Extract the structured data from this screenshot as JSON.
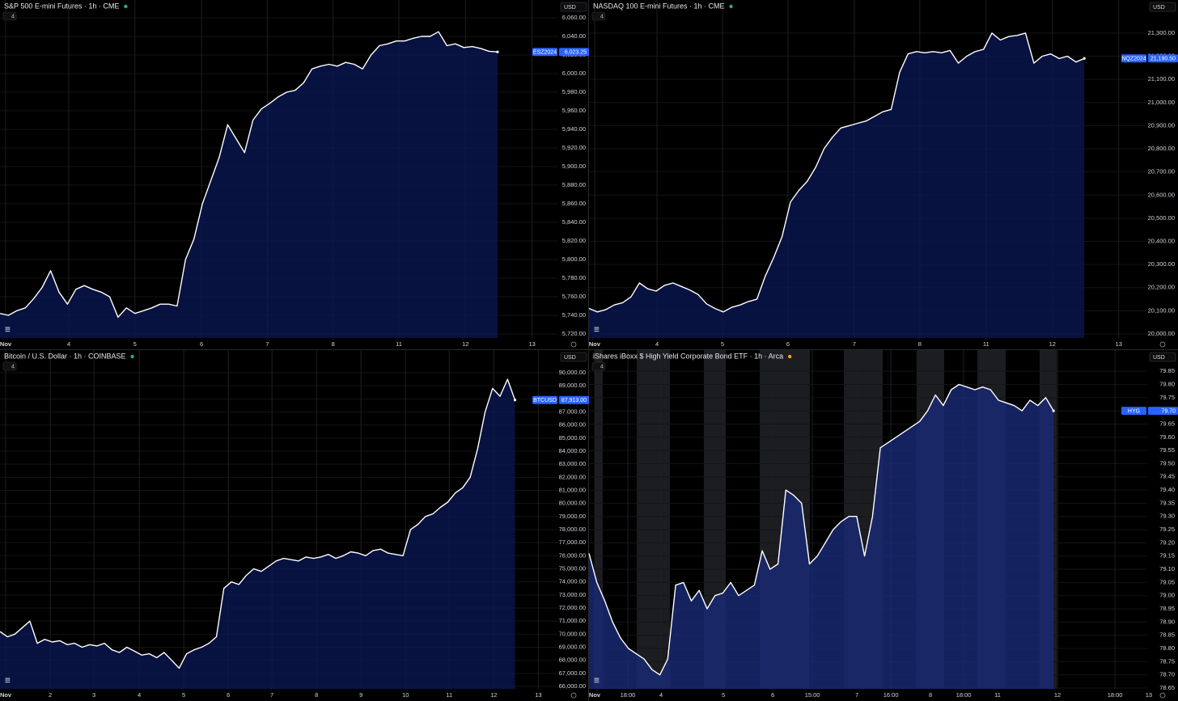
{
  "chart_data": [
    {
      "type": "area",
      "title": "S&P 500 E-mini Futures · 1h · CME",
      "indicator_count": "4",
      "currency": "USD",
      "symbol": "ESZ2024",
      "last_label": "6,023.25",
      "color": "#ffffff",
      "fill_color": "#0a1750",
      "grid": true,
      "values": [
        5742,
        5740,
        5745,
        5748,
        5758,
        5770,
        5788,
        5765,
        5752,
        5768,
        5772,
        5768,
        5765,
        5760,
        5738,
        5748,
        5742,
        5745,
        5748,
        5752,
        5752,
        5750,
        5800,
        5822,
        5860,
        5885,
        5910,
        5945,
        5930,
        5915,
        5950,
        5962,
        5968,
        5975,
        5980,
        5982,
        5990,
        6005,
        6008,
        6010,
        6008,
        6012,
        6010,
        6005,
        6020,
        6030,
        6032,
        6035,
        6035,
        6038,
        6040,
        6040,
        6045,
        6030,
        6032,
        6028,
        6029,
        6027,
        6024,
        6023.25
      ],
      "xlim": [
        0,
        66.2
      ],
      "xticks": [
        {
          "value": 0.67,
          "label": "Nov"
        },
        {
          "value": 8.16,
          "label": "4"
        },
        {
          "value": 16.0,
          "label": "5"
        },
        {
          "value": 23.9,
          "label": "6"
        },
        {
          "value": 31.7,
          "label": "7"
        },
        {
          "value": 39.5,
          "label": "8"
        },
        {
          "value": 47.3,
          "label": "11"
        },
        {
          "value": 55.2,
          "label": "12"
        },
        {
          "value": 63.1,
          "label": "13"
        }
      ],
      "ylim": [
        5715.7,
        6079.1
      ],
      "yticks": [
        {
          "value": 5720,
          "label": "5,720.00"
        },
        {
          "value": 5740,
          "label": "5,740.00"
        },
        {
          "value": 5760,
          "label": "5,760.00"
        },
        {
          "value": 5780,
          "label": "5,780.00"
        },
        {
          "value": 5800,
          "label": "5,800.00"
        },
        {
          "value": 5820,
          "label": "5,820.00"
        },
        {
          "value": 5840,
          "label": "5,840.00"
        },
        {
          "value": 5860,
          "label": "5,860.00"
        },
        {
          "value": 5880,
          "label": "5,880.00"
        },
        {
          "value": 5900,
          "label": "5,900.00"
        },
        {
          "value": 5920,
          "label": "5,920.00"
        },
        {
          "value": 5940,
          "label": "5,940.00"
        },
        {
          "value": 5960,
          "label": "5,960.00"
        },
        {
          "value": 5980,
          "label": "5,980.00"
        },
        {
          "value": 6000,
          "label": "6,000.00"
        },
        {
          "value": 6020,
          "label": "6,020.00"
        },
        {
          "value": 6040,
          "label": "6,040.00"
        },
        {
          "value": 6060,
          "label": "6,060.00"
        }
      ]
    },
    {
      "type": "area",
      "title": "NASDAQ 100 E-mini Futures · 1h · CME",
      "indicator_count": "4",
      "currency": "USD",
      "symbol": "NQZ2024",
      "last_label": "21,190.50",
      "color": "#ffffff",
      "fill_color": "#0a1750",
      "grid": true,
      "values": [
        20110,
        20095,
        20105,
        20125,
        20135,
        20160,
        20220,
        20195,
        20185,
        20210,
        20220,
        20205,
        20190,
        20170,
        20130,
        20110,
        20095,
        20115,
        20125,
        20140,
        20150,
        20250,
        20330,
        20420,
        20570,
        20620,
        20660,
        20720,
        20800,
        20850,
        20890,
        20900,
        20910,
        20920,
        20940,
        20960,
        20970,
        21130,
        21210,
        21220,
        21215,
        21220,
        21215,
        21225,
        21170,
        21200,
        21220,
        21230,
        21300,
        21270,
        21285,
        21290,
        21300,
        21170,
        21200,
        21210,
        21190,
        21200,
        21175,
        21190.5
      ],
      "xlim": [
        0,
        66.5
      ],
      "xticks": [
        {
          "value": 0.67,
          "label": "Nov"
        },
        {
          "value": 8.1,
          "label": "4"
        },
        {
          "value": 15.9,
          "label": "5"
        },
        {
          "value": 23.7,
          "label": "6"
        },
        {
          "value": 31.6,
          "label": "7"
        },
        {
          "value": 39.4,
          "label": "8"
        },
        {
          "value": 47.3,
          "label": "11"
        },
        {
          "value": 55.2,
          "label": "12"
        },
        {
          "value": 63.1,
          "label": "13"
        }
      ],
      "ylim": [
        19982.5,
        21443
      ],
      "yticks": [
        {
          "value": 20000,
          "label": "20,000.00"
        },
        {
          "value": 20100,
          "label": "20,100.00"
        },
        {
          "value": 20200,
          "label": "20,200.00"
        },
        {
          "value": 20300,
          "label": "20,300.00"
        },
        {
          "value": 20400,
          "label": "20,400.00"
        },
        {
          "value": 20500,
          "label": "20,500.00"
        },
        {
          "value": 20600,
          "label": "20,600.00"
        },
        {
          "value": 20700,
          "label": "20,700.00"
        },
        {
          "value": 20800,
          "label": "20,800.00"
        },
        {
          "value": 20900,
          "label": "20,900.00"
        },
        {
          "value": 21000,
          "label": "21,000.00"
        },
        {
          "value": 21100,
          "label": "21,100.00"
        },
        {
          "value": 21200,
          "label": "21,200.00"
        },
        {
          "value": 21300,
          "label": "21,300.00"
        }
      ]
    },
    {
      "type": "area",
      "title": "Bitcoin / U.S. Dollar · 1h · COINBASE",
      "indicator_count": "4",
      "currency": "USD",
      "symbol": "BTCUSD",
      "last_label": "87,913.00",
      "color": "#ffffff",
      "fill_color": "#0a1750",
      "grid": true,
      "values": [
        70200,
        69800,
        70000,
        70500,
        71000,
        69300,
        69600,
        69400,
        69500,
        69200,
        69300,
        69000,
        69200,
        69100,
        69300,
        68800,
        68600,
        69000,
        68700,
        68400,
        68500,
        68200,
        68600,
        68000,
        67400,
        68500,
        68800,
        69000,
        69300,
        69800,
        73500,
        74000,
        73800,
        74500,
        75000,
        74800,
        75200,
        75600,
        75800,
        75700,
        75600,
        75900,
        75800,
        75900,
        76100,
        75800,
        76000,
        76300,
        76200,
        76000,
        76400,
        76500,
        76200,
        76100,
        76000,
        78000,
        78400,
        79000,
        79200,
        79700,
        80100,
        80800,
        81200,
        82000,
        84200,
        87000,
        88800,
        88200,
        89500,
        87913
      ],
      "xlim": [
        0,
        74.8
      ],
      "xticks": [
        {
          "value": 0.76,
          "label": "Nov"
        },
        {
          "value": 6.73,
          "label": "2"
        },
        {
          "value": 12.58,
          "label": "3"
        },
        {
          "value": 18.66,
          "label": "4"
        },
        {
          "value": 24.62,
          "label": "5"
        },
        {
          "value": 30.59,
          "label": "6"
        },
        {
          "value": 36.44,
          "label": "7"
        },
        {
          "value": 42.41,
          "label": "8"
        },
        {
          "value": 48.37,
          "label": "9"
        },
        {
          "value": 54.34,
          "label": "10"
        },
        {
          "value": 60.2,
          "label": "11"
        },
        {
          "value": 66.16,
          "label": "12"
        },
        {
          "value": 72.13,
          "label": "13"
        }
      ],
      "ylim": [
        65814,
        91732
      ],
      "yticks": [
        {
          "value": 66000,
          "label": "66,000.00"
        },
        {
          "value": 67000,
          "label": "67,000.00"
        },
        {
          "value": 68000,
          "label": "68,000.00"
        },
        {
          "value": 69000,
          "label": "69,000.00"
        },
        {
          "value": 70000,
          "label": "70,000.00"
        },
        {
          "value": 71000,
          "label": "71,000.00"
        },
        {
          "value": 72000,
          "label": "72,000.00"
        },
        {
          "value": 73000,
          "label": "73,000.00"
        },
        {
          "value": 74000,
          "label": "74,000.00"
        },
        {
          "value": 75000,
          "label": "75,000.00"
        },
        {
          "value": 76000,
          "label": "76,000.00"
        },
        {
          "value": 77000,
          "label": "77,000.00"
        },
        {
          "value": 78000,
          "label": "78,000.00"
        },
        {
          "value": 79000,
          "label": "79,000.00"
        },
        {
          "value": 80000,
          "label": "80,000.00"
        },
        {
          "value": 81000,
          "label": "81,000.00"
        },
        {
          "value": 82000,
          "label": "82,000.00"
        },
        {
          "value": 83000,
          "label": "83,000.00"
        },
        {
          "value": 84000,
          "label": "84,000.00"
        },
        {
          "value": 85000,
          "label": "85,000.00"
        },
        {
          "value": 86000,
          "label": "86,000.00"
        },
        {
          "value": 87000,
          "label": "87,000.00"
        },
        {
          "value": 88000,
          "label": "88,000.00"
        },
        {
          "value": 89000,
          "label": "89,000.00"
        },
        {
          "value": 90000,
          "label": "90,000.00"
        }
      ]
    },
    {
      "type": "area",
      "title": "iShares iBoxx $ High Yield Corporate Bond ETF · 1h · Arca",
      "indicator_count": "4",
      "currency": "USD",
      "symbol": "HYG",
      "last_label": "79.70",
      "color": "#ffffff",
      "fill_color": "#1a2a78",
      "grid": true,
      "values": [
        79.16,
        79.05,
        78.98,
        78.9,
        78.84,
        78.8,
        78.78,
        78.76,
        78.72,
        78.7,
        78.76,
        79.04,
        79.05,
        78.98,
        79.02,
        78.95,
        79.0,
        79.01,
        79.05,
        79.0,
        79.02,
        79.04,
        79.17,
        79.1,
        79.12,
        79.4,
        79.38,
        79.35,
        79.12,
        79.15,
        79.2,
        79.25,
        79.28,
        79.3,
        79.3,
        79.15,
        79.3,
        79.56,
        79.58,
        79.6,
        79.62,
        79.64,
        79.66,
        79.7,
        79.76,
        79.72,
        79.78,
        79.8,
        79.79,
        79.78,
        79.79,
        79.78,
        79.74,
        79.73,
        79.72,
        79.7,
        79.74,
        79.72,
        79.75,
        79.7
      ],
      "xlim": [
        0,
        70.9
      ],
      "xticks": [
        {
          "value": 0.72,
          "label": "Nov"
        },
        {
          "value": 4.93,
          "label": "18:00"
        },
        {
          "value": 9.15,
          "label": "4"
        },
        {
          "value": 17.06,
          "label": "5"
        },
        {
          "value": 23.33,
          "label": "6"
        },
        {
          "value": 28.37,
          "label": "15:00"
        },
        {
          "value": 34.02,
          "label": "7"
        },
        {
          "value": 38.34,
          "label": "16:00"
        },
        {
          "value": 43.37,
          "label": "8"
        },
        {
          "value": 47.58,
          "label": "18:00"
        },
        {
          "value": 51.9,
          "label": "11"
        },
        {
          "value": 59.5,
          "label": "12"
        },
        {
          "value": 66.8,
          "label": "18:00"
        },
        {
          "value": 71.1,
          "label": "13"
        }
      ],
      "ylim": [
        78.647,
        79.93
      ],
      "yticks": [
        78.65,
        {
          "value": 78.7,
          "label": "78.70"
        },
        78.75,
        {
          "value": 78.8,
          "label": "78.80"
        },
        78.85,
        {
          "value": 78.9,
          "label": "78.90"
        },
        78.95,
        {
          "value": 79.0,
          "label": "79.00"
        },
        79.05,
        {
          "value": 79.1,
          "label": "79.10"
        },
        79.15,
        {
          "value": 79.2,
          "label": "79.20"
        },
        79.25,
        {
          "value": 79.3,
          "label": "79.30"
        },
        79.35,
        {
          "value": 79.4,
          "label": "79.40"
        },
        79.45,
        {
          "value": 79.5,
          "label": "79.50"
        },
        79.55,
        {
          "value": 79.6,
          "label": "79.60"
        },
        79.65,
        {
          "value": 79.7,
          "label": "79.70"
        },
        79.75,
        {
          "value": 79.8,
          "label": "79.80"
        },
        79.85
      ]
    }
  ]
}
